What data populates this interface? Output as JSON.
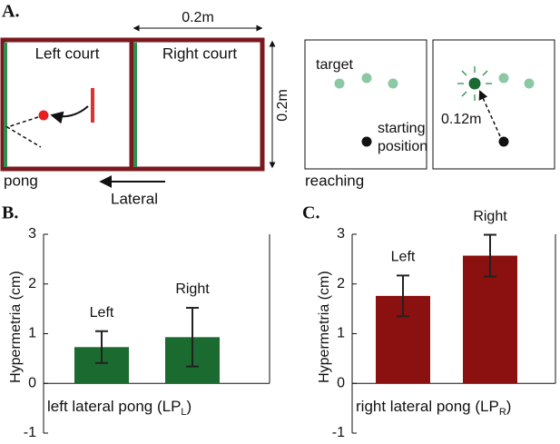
{
  "diagram": {
    "panel": "A.",
    "width_label": "0.2m",
    "left_court": "Left court",
    "right_court": "Right court",
    "height_label": "0.2m",
    "pong": "pong",
    "lateral": "Lateral",
    "target": "target",
    "start_1": "starting",
    "start_2": "position",
    "distance": "0.12m",
    "reaching": "reaching"
  },
  "chart_data": [
    {
      "type": "bar",
      "panel": "B.",
      "ylabel": "Hypermetria (cm)",
      "xlabel": "left lateral pong (LP",
      "xlabel_sub": "L",
      "xlabel_end": ")",
      "categories": [
        "Left",
        "Right"
      ],
      "values": [
        0.73,
        0.93
      ],
      "errors": [
        0.32,
        0.59
      ],
      "color": "#1b6b30",
      "ylim": [
        -1,
        3
      ],
      "yticks": [
        -1,
        0,
        1,
        2,
        3
      ]
    },
    {
      "type": "bar",
      "panel": "C.",
      "ylabel": "Hypermetria (cm)",
      "xlabel": "right lateral pong (LP",
      "xlabel_sub": "R",
      "xlabel_end": ")",
      "categories": [
        "Left",
        "Right"
      ],
      "values": [
        1.76,
        2.57
      ],
      "errors": [
        0.41,
        0.42
      ],
      "color": "#8b1010",
      "ylim": [
        -1,
        3
      ],
      "yticks": [
        -1,
        0,
        1,
        2,
        3
      ]
    }
  ]
}
